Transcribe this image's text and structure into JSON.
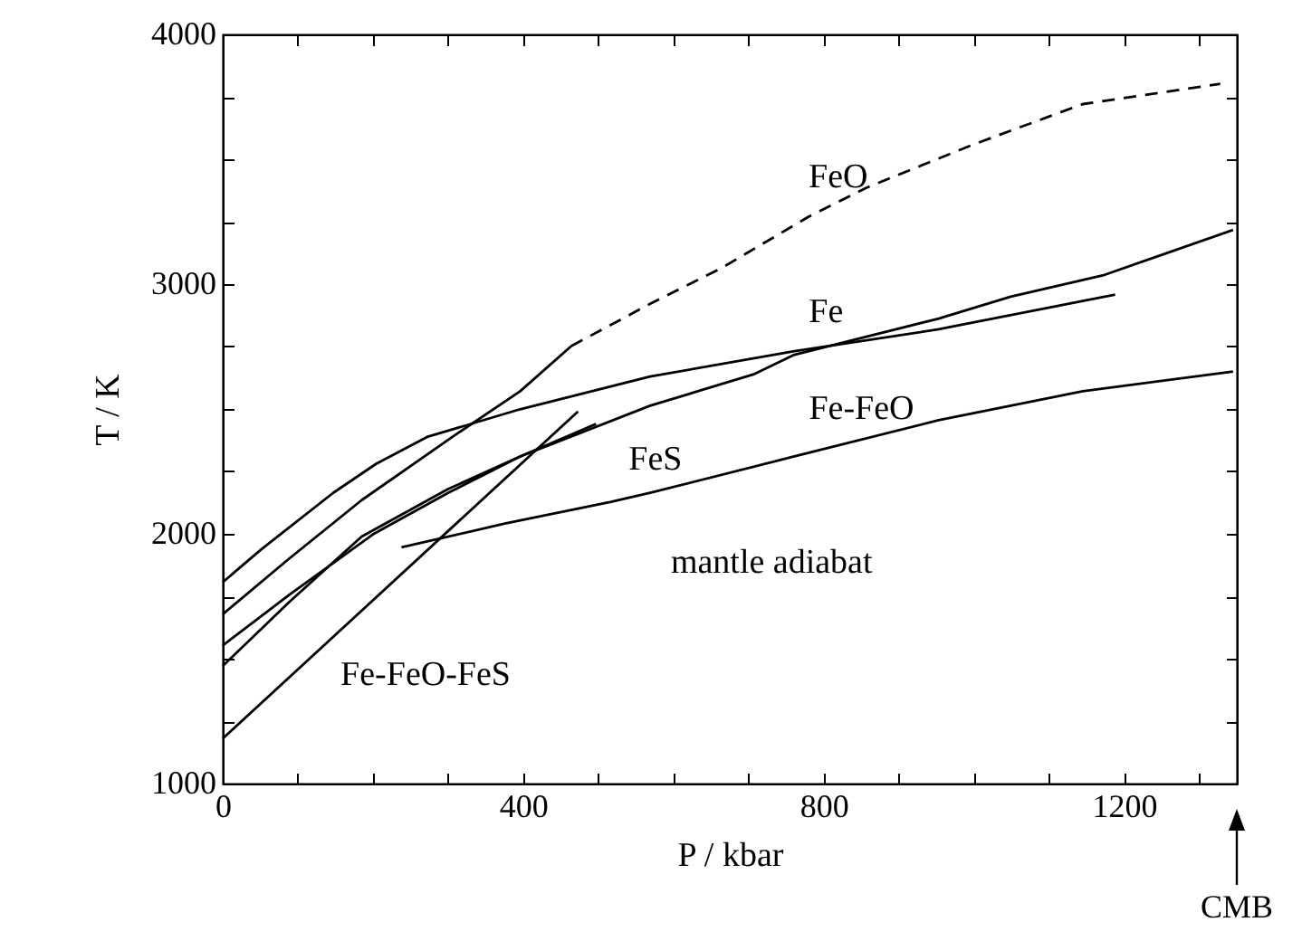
{
  "chart_data": {
    "type": "line",
    "xlabel": "P / kbar",
    "ylabel": "T / K",
    "xlim": [
      0,
      1350
    ],
    "ylim": [
      1000,
      4000
    ],
    "xticks": [
      0,
      {
        "value": 100,
        "label": null
      },
      {
        "value": 200,
        "label": null
      },
      {
        "value": 300,
        "label": null
      },
      400,
      {
        "value": 500,
        "label": null
      },
      {
        "value": 600,
        "label": null
      },
      {
        "value": 700,
        "label": null
      },
      800,
      {
        "value": 900,
        "label": null
      },
      {
        "value": 1000,
        "label": null
      },
      {
        "value": 1100,
        "label": null
      },
      1200,
      {
        "value": 1300,
        "label": null
      }
    ],
    "yticks": [
      1000,
      {
        "value": 1250,
        "label": null
      },
      {
        "value": 1500,
        "label": null
      },
      {
        "value": 1750,
        "label": null
      },
      2000,
      {
        "value": 2250,
        "label": null
      },
      {
        "value": 2500,
        "label": null
      },
      {
        "value": 2750,
        "label": null
      },
      3000,
      {
        "value": 3250,
        "label": null
      },
      {
        "value": 3500,
        "label": null
      },
      {
        "value": 3750,
        "label": null
      },
      4000
    ],
    "series": [
      {
        "color": "#000000",
        "line_style": "solid",
        "x": [
          0,
          51,
          147,
          204,
          272,
          396,
          569,
          761,
          953,
          1188
        ],
        "values": [
          1806,
          1937,
          2164,
          2280,
          2388,
          2499,
          2630,
          2731,
          2819,
          2958
        ]
      },
      {
        "color": "#000000",
        "line_style": "solid",
        "x": [
          0,
          89,
          185,
          310,
          396,
          464
        ],
        "values": [
          1678,
          1902,
          2135,
          2397,
          2571,
          2752
        ]
      },
      {
        "color": "#000000",
        "line_style": "dashed",
        "x": [
          464,
          569,
          665,
          780,
          857,
          1001,
          1145,
          1328
        ],
        "values": [
          2752,
          2921,
          3066,
          3270,
          3386,
          3561,
          3721,
          3802
        ]
      },
      {
        "color": "#000000",
        "line_style": "solid",
        "x": [
          0,
          89,
          200,
          300,
          396,
          569,
          708,
          761,
          953,
          1049,
          1174,
          1345
        ],
        "values": [
          1553,
          1757,
          1998,
          2164,
          2310,
          2513,
          2640,
          2717,
          2862,
          2950,
          3037,
          3217
        ]
      },
      {
        "color": "#000000",
        "line_style": "solid",
        "x": [
          0,
          89,
          185,
          300,
          396,
          497
        ],
        "values": [
          1471,
          1728,
          1989,
          2179,
          2310,
          2440
        ]
      },
      {
        "color": "#000000",
        "line_style": "solid",
        "x": [
          0,
          193,
          473
        ],
        "values": [
          1180,
          1715,
          2490
        ]
      },
      {
        "color": "#000000",
        "line_style": "solid",
        "x": [
          238,
          377,
          517,
          569,
          761,
          953,
          1145,
          1345
        ],
        "values": [
          1946,
          2042,
          2128,
          2164,
          2310,
          2455,
          2571,
          2650
        ]
      }
    ],
    "annotations": [
      {
        "text": "FeO",
        "x": 780,
        "y": 3270
      },
      {
        "text": "Fe",
        "x": 761,
        "y": 2731
      },
      {
        "text": "Fe-FeO",
        "x": 708,
        "y": 2640
      },
      {
        "text": "FeS",
        "x": 497,
        "y": 2440
      },
      {
        "text": "mantle adiabat",
        "x": 517,
        "y": 2128
      },
      {
        "text": "Fe-FeO-FeS",
        "x": 193,
        "y": 1715
      },
      "CMB"
    ]
  }
}
